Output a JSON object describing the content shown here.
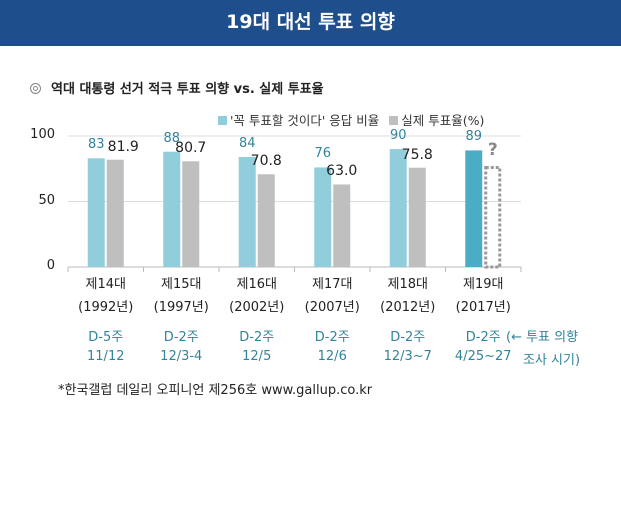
{
  "header": {
    "title": "19대 대선 투표 의향"
  },
  "subtitle": "역대 대통령 선거 적극 투표 의향 vs. 실제 투표율",
  "chart_data": {
    "type": "bar",
    "ylim": [
      0,
      100
    ],
    "yticks": [
      "0",
      "50",
      "100"
    ],
    "grid": true,
    "legend_position": "top-right",
    "categories": [
      "제14대\n(1992년)",
      "제15대\n(1997년)",
      "제16대\n(2002년)",
      "제17대\n(2007년)",
      "제18대\n(2012년)",
      "제19대\n(2017년)"
    ],
    "category_names": [
      "제14대",
      "제15대",
      "제16대",
      "제17대",
      "제18대",
      "제19대"
    ],
    "category_years": [
      "(1992년)",
      "(1997년)",
      "(2002년)",
      "(2007년)",
      "(2012년)",
      "(2017년)"
    ],
    "series": [
      {
        "name": "'꼭 투표할 것이다' 응답 비율",
        "values": [
          83,
          88,
          84,
          76,
          90,
          89
        ],
        "labels": [
          "83",
          "88",
          "84",
          "76",
          "90",
          "89"
        ],
        "color": "#92cddc",
        "highlight_color": "#4bacc6"
      },
      {
        "name": "실제 투표율(%)",
        "values": [
          81.9,
          80.7,
          70.8,
          63.0,
          75.8,
          null
        ],
        "labels": [
          "81.9",
          "80.7",
          "70.8",
          "63.0",
          "75.8",
          "?"
        ],
        "color": "#bfbfbf"
      }
    ],
    "survey_timing": [
      [
        "D-5주",
        "11/12"
      ],
      [
        "D-2주",
        "12/3-4"
      ],
      [
        "D-2주",
        "12/5"
      ],
      [
        "D-2주",
        "12/6"
      ],
      [
        "D-2주",
        "12/3~7"
      ],
      [
        "D-2주",
        "4/25~27"
      ]
    ],
    "survey_note": [
      "(← 투표 의향",
      "조사 시기)"
    ]
  },
  "source": "*한국갤럽 데일리 오피니언 제256호 www.gallup.co.kr"
}
